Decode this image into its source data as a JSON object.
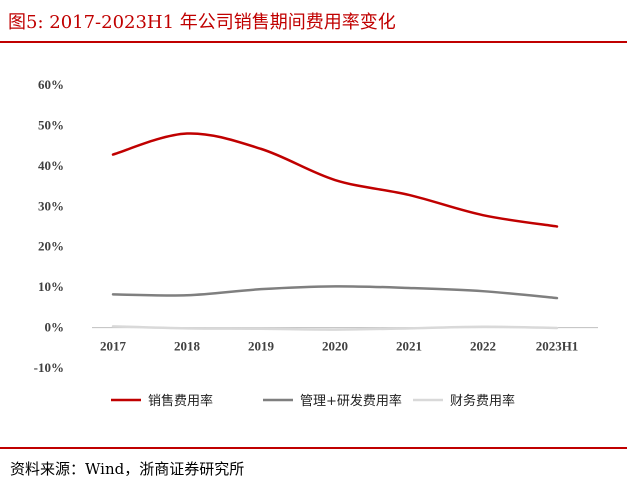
{
  "figure": {
    "title": "图5:    2017-2023H1 年公司销售期间费用率变化",
    "source": "资料来源：Wind，浙商证券研究所"
  },
  "chart_data": {
    "type": "line",
    "categories": [
      "2017",
      "2018",
      "2019",
      "2020",
      "2021",
      "2022",
      "2023H1"
    ],
    "ylim": [
      -10,
      60
    ],
    "yticks": [
      -10,
      0,
      10,
      20,
      30,
      40,
      50,
      60
    ],
    "ytick_labels": [
      "-10%",
      "0%",
      "10%",
      "20%",
      "30%",
      "40%",
      "50%",
      "60%"
    ],
    "legend_position": "bottom",
    "grid": false,
    "series": [
      {
        "name": "销售费用率",
        "color": "#c00000",
        "values": [
          42.8,
          48.0,
          44.2,
          36.5,
          32.8,
          27.8,
          25.0
        ]
      },
      {
        "name": "管理+研发费用率",
        "color": "#7f7f7f",
        "values": [
          8.2,
          8.0,
          9.5,
          10.2,
          9.8,
          9.0,
          7.3
        ]
      },
      {
        "name": "财务费用率",
        "color": "#d9d9d9",
        "values": [
          0.3,
          -0.2,
          -0.3,
          -0.5,
          -0.2,
          0.2,
          -0.1
        ]
      }
    ]
  }
}
